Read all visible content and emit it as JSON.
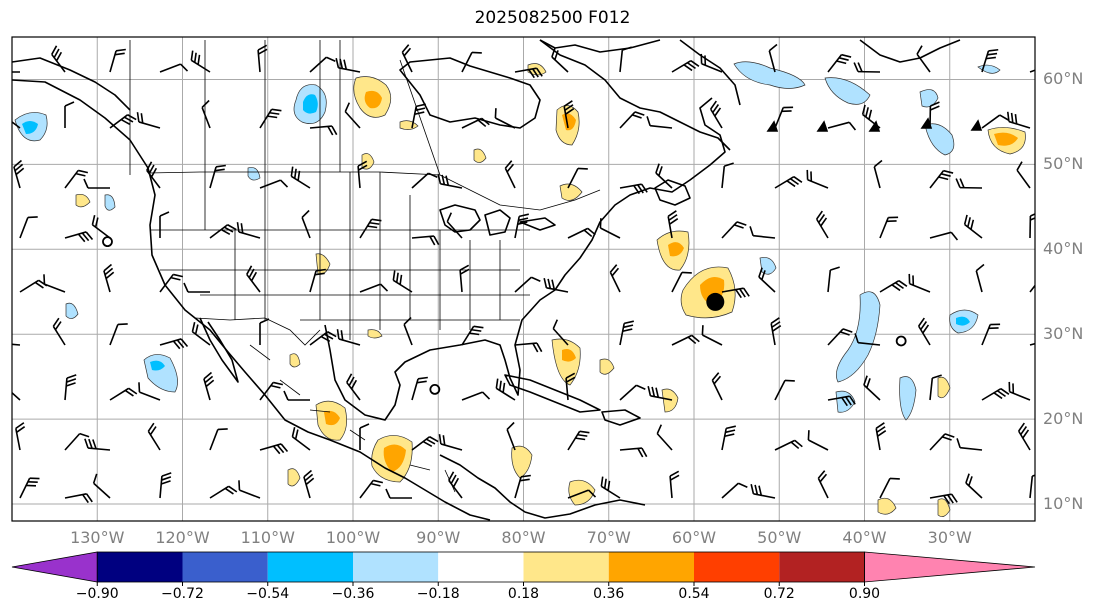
{
  "title": "2025082500 F012",
  "map": {
    "lon_range": [
      -140,
      -20
    ],
    "lat_range": [
      8,
      65
    ],
    "gridlines": true,
    "lat_ticks": [
      {
        "value": 60,
        "label": "60°N"
      },
      {
        "value": 50,
        "label": "50°N"
      },
      {
        "value": 40,
        "label": "40°N"
      },
      {
        "value": 30,
        "label": "30°N"
      },
      {
        "value": 20,
        "label": "20°N"
      },
      {
        "value": 10,
        "label": "10°N"
      }
    ],
    "lon_ticks": [
      {
        "value": -130,
        "label": "130°W"
      },
      {
        "value": -120,
        "label": "120°W"
      },
      {
        "value": -110,
        "label": "110°W"
      },
      {
        "value": -100,
        "label": "100°W"
      },
      {
        "value": -90,
        "label": "90°W"
      },
      {
        "value": -80,
        "label": "80°W"
      },
      {
        "value": -70,
        "label": "70°W"
      },
      {
        "value": -60,
        "label": "60°W"
      },
      {
        "value": -50,
        "label": "50°W"
      },
      {
        "value": -40,
        "label": "40°W"
      },
      {
        "value": -30,
        "label": "30°W"
      }
    ],
    "markers": [
      {
        "type": "filled-circle",
        "lon": -57.5,
        "lat": 33.8
      },
      {
        "type": "open-circle",
        "lon": -128.8,
        "lat": 40.9
      },
      {
        "type": "open-circle",
        "lon": -90.4,
        "lat": 23.5
      },
      {
        "type": "open-circle",
        "lon": -35.7,
        "lat": 29.2
      }
    ]
  },
  "colorbar": {
    "levels": [
      "−0.90",
      "−0.72",
      "−0.54",
      "−0.36",
      "−0.18",
      "0.18",
      "0.36",
      "0.54",
      "0.72",
      "0.90"
    ],
    "colors": [
      "#9932CC",
      "#000080",
      "#3A5FCD",
      "#00BFFF",
      "#B0E2FF",
      "#FFFFFF",
      "#FFE78A",
      "#FFA500",
      "#FF3F00",
      "#B22222",
      "#FF83B0"
    ]
  },
  "colors": {
    "gridline": "#aaaaaa",
    "coastline": "#000000",
    "label": "#808080"
  }
}
